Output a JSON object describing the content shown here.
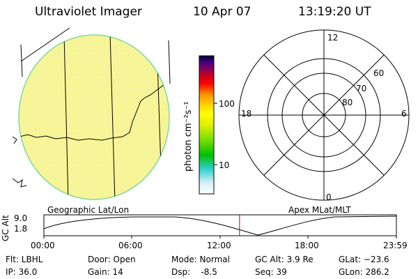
{
  "header": {
    "title": "Ultraviolet Imager",
    "date": "10 Apr 07",
    "time": "13:19:20 UT"
  },
  "colorbar": {
    "label": "photon cm⁻²s⁻¹",
    "ticks": [
      {
        "label": "100",
        "value": 100
      },
      {
        "label": "10",
        "value": 10
      }
    ],
    "colors": [
      "#ffffff",
      "#d8f0f8",
      "#30d0d0",
      "#00c000",
      "#80e000",
      "#e0f000",
      "#ffff00",
      "#ffd000",
      "#ff9000",
      "#ff0000",
      "#c00020",
      "#800060",
      "#400080",
      "#000030"
    ]
  },
  "polar": {
    "clock_labels": {
      "top": "12",
      "left": "18",
      "right": "6",
      "bottom": "0"
    },
    "lat_labels": [
      {
        "label": "60",
        "value": 60
      },
      {
        "label": "70",
        "value": 70
      },
      {
        "label": "80",
        "value": 80
      }
    ]
  },
  "strip": {
    "geo_label": "Geographic Lat/Lon",
    "apex_label": "Apex MLat/MLT",
    "ylabel": "GC Alt",
    "ytick_top": "9.0",
    "ytick_bottom": "1.8",
    "xticks": [
      "00:00",
      "06:00",
      "12:00",
      "18:00",
      "23:59"
    ],
    "current_time_hours": 13.32
  },
  "info": {
    "flt": "Flt: LBHL",
    "ip": "IP: 36.0",
    "door": "Door: Open",
    "gain": "Gain: 14",
    "mode": "Mode: Normal",
    "dsp": "Dsp:    -8.5",
    "gcalt": "GC Alt: 3.9 Re",
    "seq": "Seq: 39",
    "glat": "GLat: −23.6",
    "glon": "GLon: 286.2"
  },
  "colors": {
    "disk": "#f6f59a",
    "disk_edge": "#7fd9a0",
    "marker": "#c00000"
  }
}
